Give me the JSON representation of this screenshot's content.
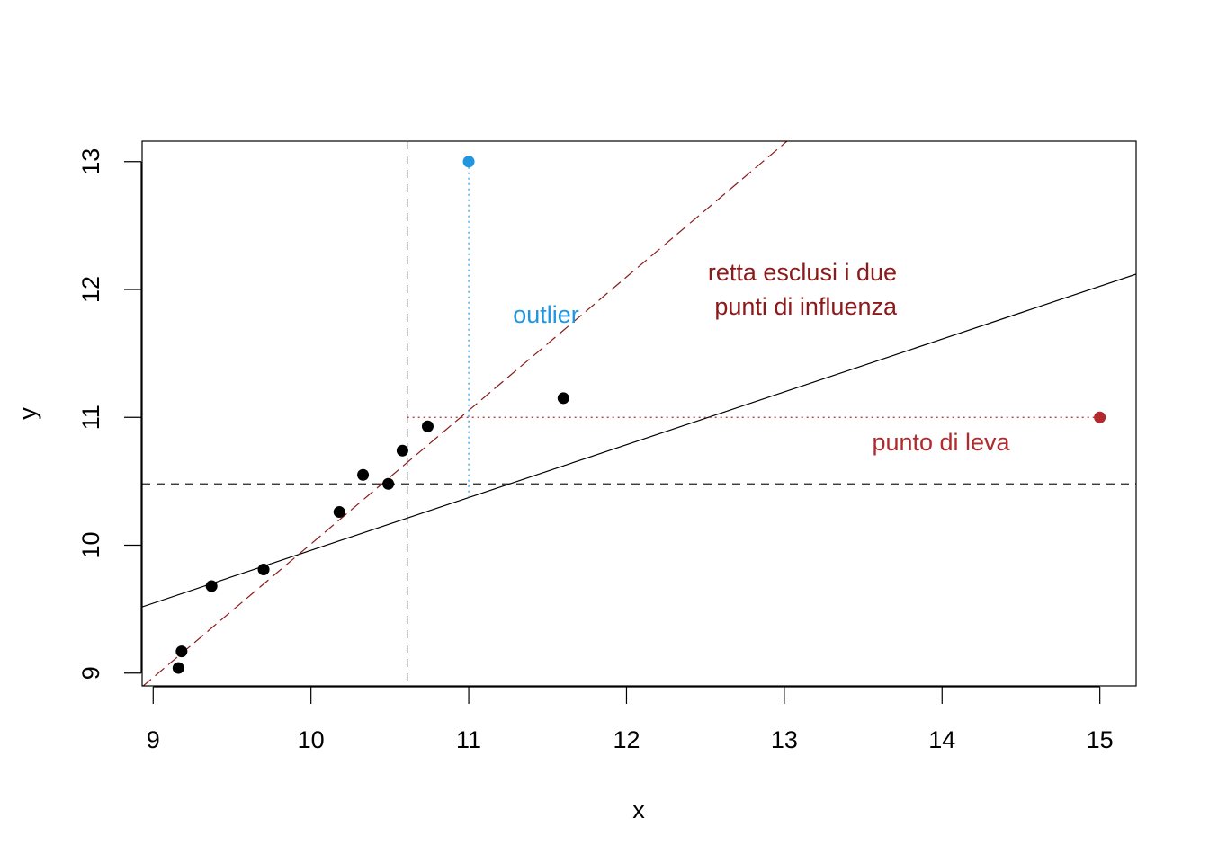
{
  "chart_data": {
    "type": "scatter",
    "title": "",
    "xlabel": "x",
    "ylabel": "y",
    "xlim": [
      8.93,
      15.23
    ],
    "ylim": [
      8.9,
      13.16
    ],
    "x_ticks": [
      9,
      10,
      11,
      12,
      13,
      14,
      15
    ],
    "y_ticks": [
      9,
      10,
      11,
      12,
      13
    ],
    "grid": false,
    "points": [
      {
        "x": 9.16,
        "y": 9.04
      },
      {
        "x": 9.18,
        "y": 9.17
      },
      {
        "x": 9.37,
        "y": 9.68
      },
      {
        "x": 9.7,
        "y": 9.81
      },
      {
        "x": 10.18,
        "y": 10.26
      },
      {
        "x": 10.33,
        "y": 10.55
      },
      {
        "x": 10.49,
        "y": 10.48
      },
      {
        "x": 10.58,
        "y": 10.74
      },
      {
        "x": 10.74,
        "y": 10.93
      },
      {
        "x": 11.6,
        "y": 11.15
      }
    ],
    "points_color": "#000000",
    "outlier": {
      "x": 11.0,
      "y": 13.0,
      "color": "#2196e0",
      "label": "outlier"
    },
    "leverage_point": {
      "x": 15.0,
      "y": 11.0,
      "color": "#b22a2e",
      "label": "punto di leva"
    },
    "mean_x": 10.61,
    "mean_y": 10.48,
    "fit_all": {
      "intercept": 5.83,
      "slope": 0.413,
      "color": "#000000",
      "style": "solid"
    },
    "fit_excluded": {
      "intercept": -0.43,
      "slope": 1.044,
      "color": "#8b1a1a",
      "style": "dashed",
      "label": [
        "retta esclusi i due",
        "punti di influenza"
      ]
    }
  }
}
